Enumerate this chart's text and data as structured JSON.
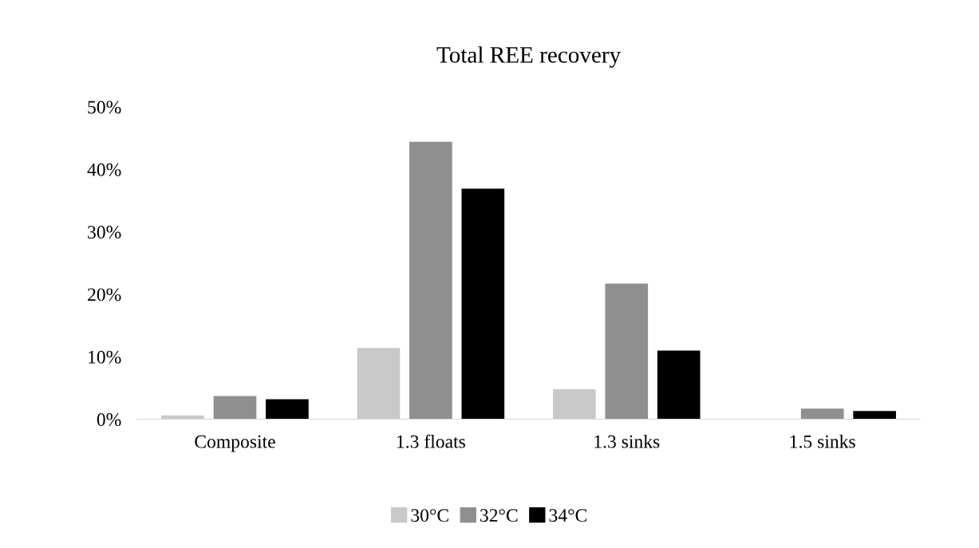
{
  "chart_data": {
    "type": "bar",
    "title": "Total REE recovery",
    "categories": [
      "Composite",
      "1.3 floats",
      "1.3 sinks",
      "1.5 sinks"
    ],
    "series": [
      {
        "name": "30°C",
        "color": "#c9c9c9",
        "values": [
          0.6,
          11.4,
          4.8,
          0
        ]
      },
      {
        "name": "32°C",
        "color": "#8f8f8f",
        "values": [
          3.7,
          44.4,
          21.7,
          1.7
        ]
      },
      {
        "name": "34°C",
        "color": "#000000",
        "values": [
          3.2,
          36.9,
          11.0,
          1.3
        ]
      }
    ],
    "ylim": [
      0,
      50
    ],
    "yticks": [
      {
        "value": 0,
        "label": "0%"
      },
      {
        "value": 10,
        "label": "10%"
      },
      {
        "value": 20,
        "label": "20%"
      },
      {
        "value": 30,
        "label": "30%"
      },
      {
        "value": 40,
        "label": "40%"
      },
      {
        "value": 50,
        "label": "50%"
      }
    ],
    "grid": false,
    "legend": "bottom"
  }
}
